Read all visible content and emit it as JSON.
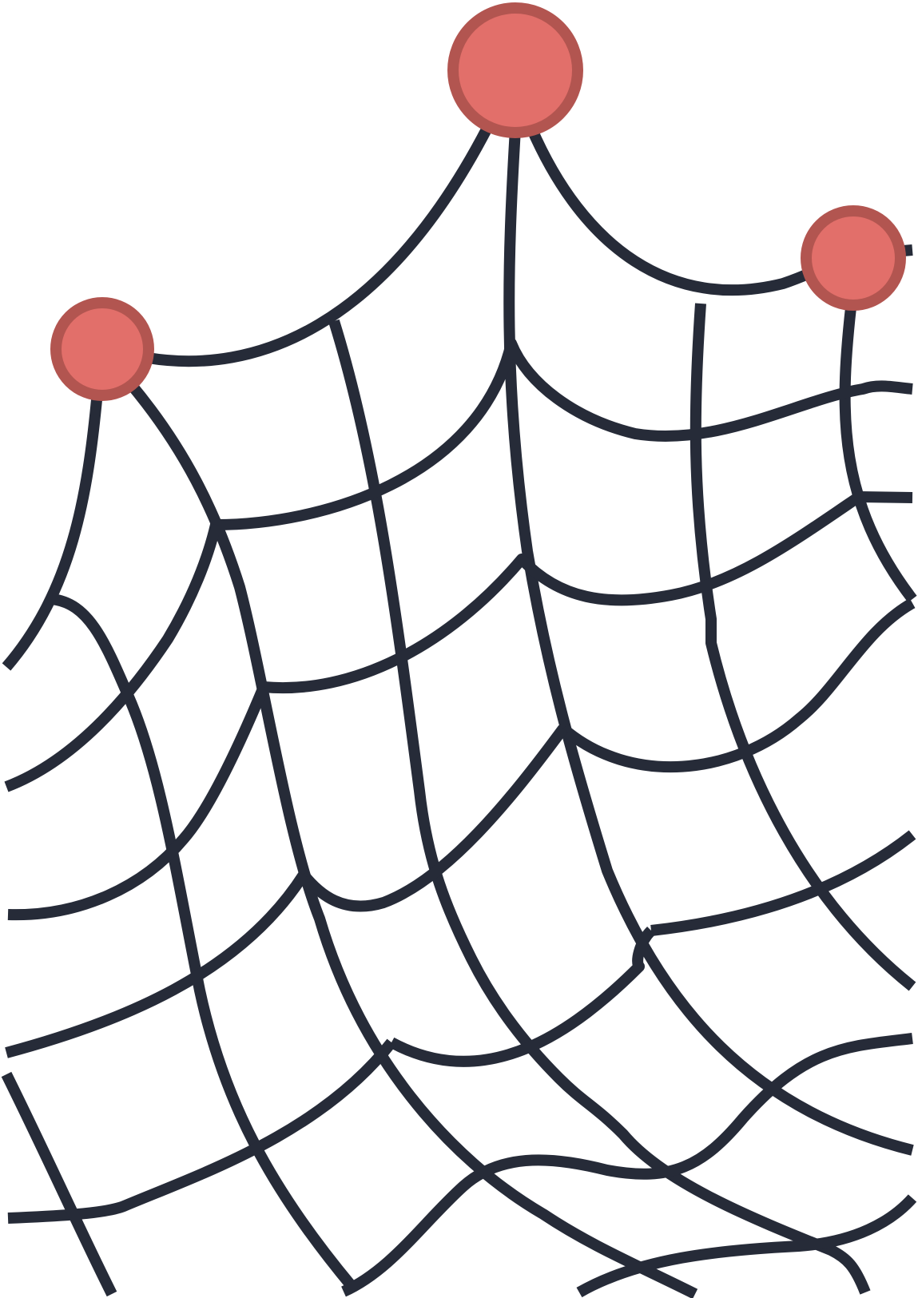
{
  "illustration": {
    "subject": "spider-web-with-pins",
    "colors": {
      "background": "#ffffff",
      "strand": "#262b38",
      "pin_fill": "#e26f6a",
      "pin_stroke": "#b25550"
    }
  }
}
